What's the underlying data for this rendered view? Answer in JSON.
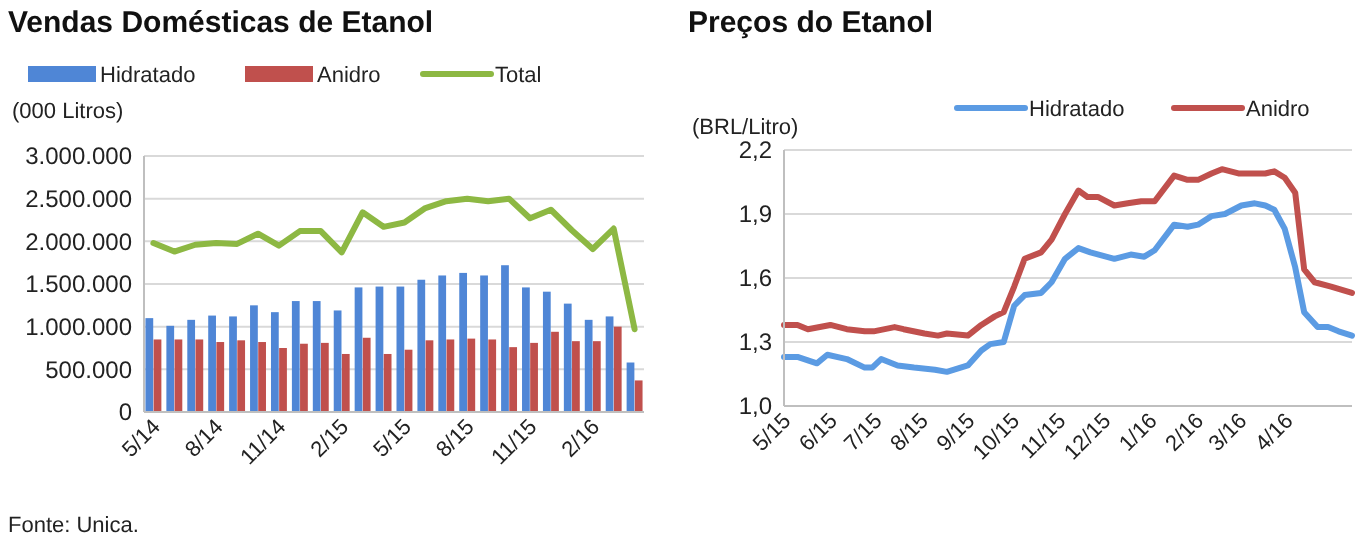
{
  "chart_data": [
    {
      "type": "bar",
      "title": "Vendas Domésticas de Etanol",
      "ylabel": "(000 Litros)",
      "legend": "top",
      "grid": "y",
      "annotations": [
        "Fonte: Unica."
      ],
      "categories": [
        "5/14",
        null,
        null,
        "8/14",
        null,
        null,
        "11/14",
        null,
        null,
        "2/15",
        null,
        null,
        "5/15",
        null,
        null,
        "8/15",
        null,
        null,
        "11/15",
        null,
        null,
        "2/16",
        null,
        null
      ],
      "ylim": [
        0,
        3000000
      ],
      "yticks": [
        0,
        {
          "value": 500000,
          "label": "500.000"
        },
        {
          "value": 1000000,
          "label": "1.000.000"
        },
        {
          "value": 1500000,
          "label": "1.500.000"
        },
        {
          "value": 2000000,
          "label": "2.000.000"
        },
        {
          "value": 2500000,
          "label": "2.500.000"
        },
        {
          "value": 3000000,
          "label": "3.000.000"
        }
      ],
      "series": [
        {
          "name": "Hidratado",
          "color": "#4f86d6",
          "values": [
            1100000,
            1010000,
            1080000,
            1130000,
            1120000,
            1250000,
            1170000,
            1300000,
            1300000,
            1190000,
            1460000,
            1470000,
            1470000,
            1550000,
            1600000,
            1630000,
            1600000,
            1720000,
            1460000,
            1410000,
            1270000,
            1080000,
            1120000,
            580000
          ]
        },
        {
          "name": "Anidro",
          "color": "#c0504d",
          "values": [
            850000,
            850000,
            850000,
            820000,
            840000,
            820000,
            750000,
            800000,
            810000,
            680000,
            870000,
            680000,
            730000,
            840000,
            850000,
            860000,
            850000,
            760000,
            810000,
            940000,
            830000,
            830000,
            1000000,
            370000
          ]
        },
        {
          "name": "Total",
          "type": "line",
          "color": "#8db843",
          "values": [
            1980000,
            1880000,
            1960000,
            1980000,
            1970000,
            2090000,
            1950000,
            2120000,
            2120000,
            1870000,
            2340000,
            2170000,
            2220000,
            2390000,
            2470000,
            2500000,
            2470000,
            2500000,
            2270000,
            2370000,
            2130000,
            1910000,
            2150000,
            970000
          ]
        }
      ]
    },
    {
      "type": "line",
      "title": "Preços do Etanol",
      "ylabel": "(BRL/Litro)",
      "legend": "top right",
      "grid": "y",
      "line_style": "solid",
      "xlim": [
        "2015-05-01",
        "2016-05-15"
      ],
      "xticks": [
        {
          "value": "2015-05-01",
          "label": "5/15"
        },
        {
          "value": "2015-06-01",
          "label": "6/15"
        },
        {
          "value": "2015-07-01",
          "label": "7/15"
        },
        {
          "value": "2015-08-01",
          "label": "8/15"
        },
        {
          "value": "2015-09-01",
          "label": "9/15"
        },
        {
          "value": "2015-10-01",
          "label": "10/15"
        },
        {
          "value": "2015-11-01",
          "label": "11/15"
        },
        {
          "value": "2015-12-01",
          "label": "12/15"
        },
        {
          "value": "2016-01-01",
          "label": "1/16"
        },
        {
          "value": "2016-02-01",
          "label": "2/16"
        },
        {
          "value": "2016-03-01",
          "label": "3/16"
        },
        {
          "value": "2016-04-01",
          "label": "4/16"
        }
      ],
      "ylim": [
        1.0,
        2.2
      ],
      "yticks": [
        {
          "value": 1.0,
          "label": "1,0"
        },
        {
          "value": 1.3,
          "label": "1,3"
        },
        {
          "value": 1.6,
          "label": "1,6"
        },
        {
          "value": 1.9,
          "label": "1,9"
        },
        {
          "value": 2.2,
          "label": "2,2"
        }
      ],
      "series": [
        {
          "name": "Hidratado",
          "color": "#5b9be3",
          "x": [
            "2015-05-01",
            "2015-05-10",
            "2015-05-23",
            "2015-05-30",
            "2015-06-12",
            "2015-06-24",
            "2015-06-29",
            "2015-07-05",
            "2015-07-16",
            "2015-07-27",
            "2015-08-10",
            "2015-08-18",
            "2015-09-01",
            "2015-09-10",
            "2015-09-16",
            "2015-09-25",
            "2015-10-02",
            "2015-10-09",
            "2015-10-20",
            "2015-10-27",
            "2015-11-05",
            "2015-11-14",
            "2015-11-22",
            "2015-12-08",
            "2015-12-19",
            "2015-12-28",
            "2016-01-04",
            "2016-01-17",
            "2016-01-26",
            "2016-02-02",
            "2016-02-11",
            "2016-02-20",
            "2016-03-02",
            "2016-03-11",
            "2016-03-18",
            "2016-03-24",
            "2016-03-31",
            "2016-04-07",
            "2016-04-13",
            "2016-04-22",
            "2016-04-29",
            "2016-05-06",
            "2016-05-15"
          ],
          "values": [
            1.23,
            1.23,
            1.2,
            1.24,
            1.22,
            1.18,
            1.18,
            1.22,
            1.19,
            1.18,
            1.17,
            1.16,
            1.19,
            1.26,
            1.29,
            1.3,
            1.47,
            1.52,
            1.53,
            1.58,
            1.69,
            1.74,
            1.72,
            1.69,
            1.71,
            1.7,
            1.73,
            1.85,
            1.84,
            1.85,
            1.89,
            1.9,
            1.94,
            1.95,
            1.94,
            1.92,
            1.83,
            1.65,
            1.44,
            1.37,
            1.37,
            1.35,
            1.33
          ]
        },
        {
          "name": "Anidro",
          "color": "#c0504d",
          "x": [
            "2015-05-01",
            "2015-05-10",
            "2015-05-17",
            "2015-06-01",
            "2015-06-12",
            "2015-06-24",
            "2015-06-30",
            "2015-07-14",
            "2015-07-20",
            "2015-08-03",
            "2015-08-12",
            "2015-08-18",
            "2015-09-01",
            "2015-09-10",
            "2015-09-19",
            "2015-09-25",
            "2015-10-02",
            "2015-10-09",
            "2015-10-20",
            "2015-10-27",
            "2015-11-05",
            "2015-11-14",
            "2015-11-20",
            "2015-11-27",
            "2015-12-08",
            "2015-12-17",
            "2015-12-26",
            "2016-01-04",
            "2016-01-17",
            "2016-01-26",
            "2016-02-02",
            "2016-02-11",
            "2016-02-18",
            "2016-02-29",
            "2016-03-11",
            "2016-03-18",
            "2016-03-24",
            "2016-03-31",
            "2016-04-07",
            "2016-04-13",
            "2016-04-20",
            "2016-05-01",
            "2016-05-15"
          ],
          "values": [
            1.38,
            1.38,
            1.36,
            1.38,
            1.36,
            1.35,
            1.35,
            1.37,
            1.36,
            1.34,
            1.33,
            1.34,
            1.33,
            1.38,
            1.42,
            1.44,
            1.56,
            1.69,
            1.72,
            1.78,
            1.9,
            2.01,
            1.98,
            1.98,
            1.94,
            1.95,
            1.96,
            1.96,
            2.08,
            2.06,
            2.06,
            2.09,
            2.11,
            2.09,
            2.09,
            2.09,
            2.1,
            2.07,
            2.0,
            1.64,
            1.58,
            1.56,
            1.53
          ]
        }
      ]
    }
  ]
}
